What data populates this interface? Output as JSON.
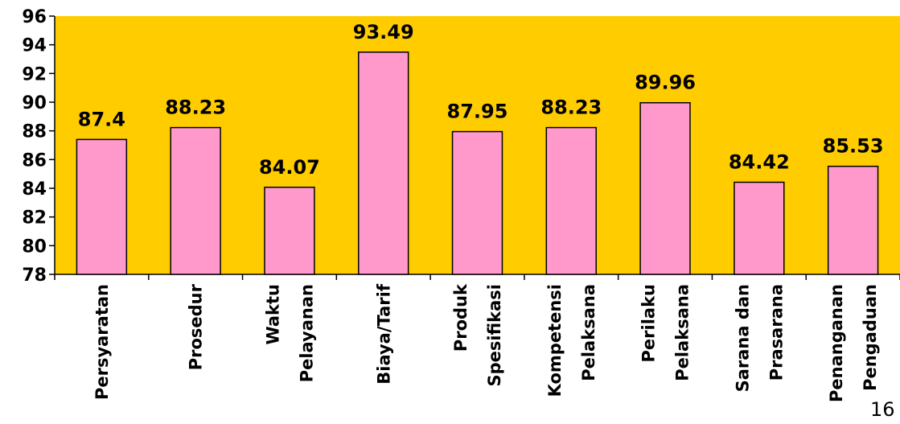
{
  "chart_data": {
    "type": "bar",
    "title": "",
    "xlabel": "",
    "ylabel": "",
    "categories": [
      [
        "Persyaratan"
      ],
      [
        "Prosedur"
      ],
      [
        "Waktu",
        "Pelayanan"
      ],
      [
        "Biaya/Tarif"
      ],
      [
        "Produk",
        "Spesifikasi"
      ],
      [
        "Kompetensi",
        "Pelaksana"
      ],
      [
        "Perilaku",
        "Pelaksana"
      ],
      [
        "Sarana dan",
        "Prasarana"
      ],
      [
        "Penanganan",
        "Pengaduan"
      ]
    ],
    "values": [
      87.4,
      88.23,
      84.07,
      93.49,
      87.95,
      88.23,
      89.96,
      84.42,
      85.53
    ],
    "value_labels": [
      "87.4",
      "88.23",
      "84.07",
      "93.49",
      "87.95",
      "88.23",
      "89.96",
      "84.42",
      "85.53"
    ],
    "ylim": [
      78,
      96
    ],
    "yticks": [
      78,
      80,
      82,
      84,
      86,
      88,
      90,
      92,
      94,
      96
    ],
    "grid": false,
    "legend": "none",
    "colors": {
      "plot_background": "#FFCC00",
      "bar_fill": "#FF99CC",
      "bar_stroke": "#000000",
      "axis": "#000000"
    }
  },
  "page_number": "16"
}
